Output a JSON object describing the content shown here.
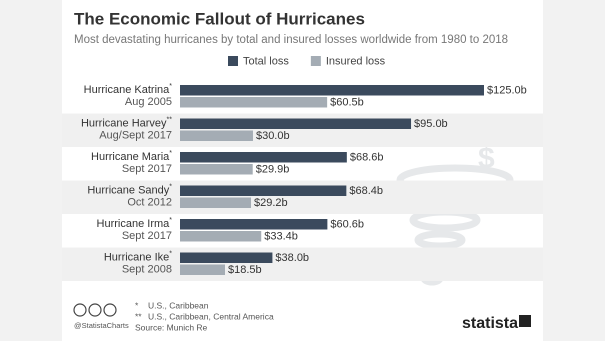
{
  "chart_data": {
    "type": "bar",
    "orientation": "horizontal",
    "title": "The Economic Fallout of Hurricanes",
    "subtitle": "Most devastating hurricanes by total and insured losses worldwide from 1980 to 2018",
    "categories": [
      "Hurricane Katrina",
      "Hurricane Harvey",
      "Hurricane Maria",
      "Hurricane Sandy",
      "Hurricane Irma",
      "Hurricane Ike"
    ],
    "markers": [
      "*",
      "**",
      "*",
      "*",
      "*",
      "*"
    ],
    "dates": [
      "Aug 2005",
      "Aug/Sept 2017",
      "Sept 2017",
      "Oct 2012",
      "Sept 2017",
      "Sept 2008"
    ],
    "series": [
      {
        "name": "Total loss",
        "color": "#3b4a5d",
        "values": [
          125.0,
          95.0,
          68.6,
          68.4,
          60.6,
          38.0
        ],
        "value_labels": [
          "$125.0b",
          "$95.0b",
          "$68.6b",
          "$68.4b",
          "$60.6b",
          "$38.0b"
        ]
      },
      {
        "name": "Insured loss",
        "color": "#a4acb4",
        "values": [
          60.5,
          30.0,
          29.9,
          29.2,
          33.4,
          18.5
        ],
        "value_labels": [
          "$60.5b",
          "$30.0b",
          "$29.9b",
          "$29.2b",
          "$33.4b",
          "$18.5b"
        ]
      }
    ],
    "legend": "top",
    "row_shading": true
  },
  "footer": {
    "notes": [
      {
        "marker": "*",
        "text": "U.S., Caribbean"
      },
      {
        "marker": "**",
        "text": "U.S., Caribbean, Central America"
      }
    ],
    "source": "Source: Munich Re",
    "handle": "@StatistaCharts",
    "brand": "statista"
  }
}
